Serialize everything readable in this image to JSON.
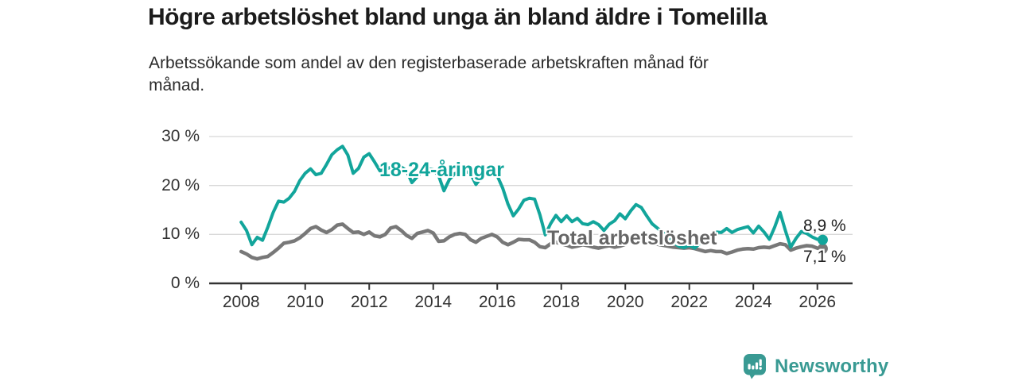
{
  "header": {
    "title": "Högre arbetslöshet bland unga än bland äldre i Tomelilla",
    "subtitle_lines": [
      "Arbetssökande som andel av den registerbaserade arbetskraften månad för",
      "månad."
    ]
  },
  "footer": {
    "brand": "Newsworthy",
    "logo_icon": "bar-chart-speech-bubble-icon"
  },
  "colors": {
    "young_line": "#12a59b",
    "total_line": "#787878",
    "total_label": "#666666",
    "axis": "#333333",
    "gridline": "#d8d8d8",
    "logo_teal": "#399a93",
    "background": "#ffffff"
  },
  "chart_data": {
    "type": "line",
    "title": "Högre arbetslöshet bland unga än bland äldre i Tomelilla",
    "subtitle": "Arbetssökande som andel av den registerbaserade arbetskraften månad för månad.",
    "x_unit": "year (monthly data)",
    "x_start": 2008.0,
    "x_step_years": 0.16667,
    "xlim": [
      2007.0,
      2027.1
    ],
    "ylim": [
      0,
      30
    ],
    "grid": "horizontal",
    "legend_position": "inline-labels",
    "x_ticks": [
      2008,
      2010,
      2012,
      2014,
      2016,
      2018,
      2020,
      2022,
      2024,
      2026
    ],
    "x_tick_labels": [
      "2008",
      "2010",
      "2012",
      "2014",
      "2016",
      "2018",
      "2020",
      "2022",
      "2024",
      "2026"
    ],
    "y_ticks": [
      0,
      10,
      20,
      30
    ],
    "y_tick_labels": [
      "0 %",
      "10 %",
      "20 %",
      "30 %"
    ],
    "series": [
      {
        "name": "18-24-åringar",
        "color": "#12a59b",
        "end_label": "8,9 %",
        "end_value": 8.9,
        "values": [
          12.5,
          10.8,
          7.9,
          9.4,
          8.8,
          11.5,
          14.5,
          16.8,
          16.6,
          17.4,
          18.8,
          21.0,
          22.5,
          23.4,
          22.2,
          22.5,
          24.3,
          26.3,
          27.3,
          28.0,
          26.2,
          22.5,
          23.5,
          25.8,
          26.5,
          24.8,
          23.0,
          23.3,
          23.7,
          24.0,
          23.8,
          23.0,
          20.6,
          21.8,
          23.0,
          23.4,
          23.2,
          22.0,
          18.9,
          21.2,
          22.4,
          22.8,
          23.0,
          22.4,
          20.2,
          21.6,
          22.3,
          22.4,
          22.0,
          19.5,
          16.2,
          13.8,
          15.2,
          17.0,
          17.4,
          17.2,
          14.0,
          9.9,
          12.2,
          13.9,
          12.6,
          13.8,
          12.6,
          13.3,
          12.2,
          12.0,
          12.6,
          12.0,
          10.8,
          12.1,
          12.8,
          14.2,
          13.2,
          14.8,
          16.1,
          15.5,
          13.8,
          12.2,
          11.3,
          10.4,
          9.4,
          8.4,
          7.6,
          7.3,
          7.8,
          7.2,
          8.2,
          9.0,
          9.8,
          10.5,
          10.4,
          11.2,
          10.4,
          11.0,
          11.3,
          11.6,
          10.3,
          11.7,
          10.5,
          9.0,
          11.5,
          14.5,
          10.8,
          7.4,
          9.2,
          10.6,
          10.2,
          9.5,
          9.0,
          8.9
        ]
      },
      {
        "name": "Total arbetslöshet",
        "color": "#787878",
        "end_label": "7,1 %",
        "end_value": 7.1,
        "values": [
          6.5,
          6.0,
          5.3,
          5.0,
          5.3,
          5.5,
          6.3,
          7.2,
          8.2,
          8.4,
          8.7,
          9.3,
          10.2,
          11.2,
          11.6,
          10.9,
          10.4,
          11.0,
          11.9,
          12.1,
          11.2,
          10.4,
          10.5,
          10.0,
          10.5,
          9.7,
          9.5,
          10.0,
          11.3,
          11.6,
          10.8,
          9.8,
          9.2,
          10.2,
          10.5,
          10.8,
          10.3,
          8.6,
          8.7,
          9.5,
          10.0,
          10.2,
          10.0,
          8.9,
          8.4,
          9.2,
          9.6,
          10.0,
          9.5,
          8.4,
          7.9,
          8.4,
          9.0,
          8.9,
          8.9,
          8.4,
          7.5,
          7.3,
          8.1,
          8.4,
          8.1,
          7.8,
          7.4,
          7.6,
          7.9,
          7.7,
          7.4,
          7.2,
          7.5,
          7.7,
          7.4,
          7.6,
          8.0,
          8.6,
          9.0,
          8.8,
          8.4,
          8.2,
          8.0,
          7.8,
          7.6,
          7.4,
          7.3,
          7.2,
          7.3,
          7.1,
          6.8,
          6.5,
          6.7,
          6.5,
          6.5,
          6.1,
          6.4,
          6.8,
          7.0,
          7.1,
          7.0,
          7.3,
          7.4,
          7.3,
          7.7,
          8.1,
          7.9,
          6.8,
          7.2,
          7.5,
          7.7,
          7.6,
          7.2,
          7.1
        ]
      }
    ]
  }
}
